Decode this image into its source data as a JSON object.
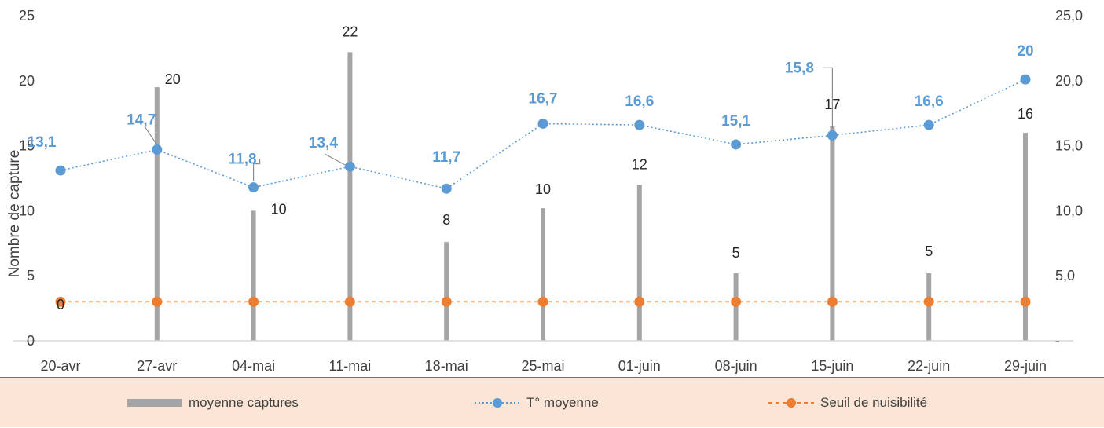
{
  "chart_data": {
    "type": "bar",
    "categories": [
      "20-avr",
      "27-avr",
      "04-mai",
      "11-mai",
      "18-mai",
      "25-mai",
      "01-juin",
      "08-juin",
      "15-juin",
      "22-juin",
      "29-juin"
    ],
    "series": [
      {
        "name": "moyenne captures",
        "type": "bar",
        "axis": "left",
        "color": "#a5a5a5",
        "values": [
          0,
          19.5,
          10,
          22.2,
          7.6,
          10.2,
          12,
          5.2,
          16.5,
          5.2,
          16
        ],
        "labels": [
          "0",
          "20",
          "10",
          "22",
          "8",
          "10",
          "12",
          "5",
          "17",
          "5",
          "16"
        ]
      },
      {
        "name": "T° moyenne",
        "type": "line",
        "axis": "right",
        "color": "#5b9bd5",
        "values": [
          13.1,
          14.7,
          11.8,
          13.4,
          11.7,
          16.7,
          16.6,
          15.1,
          15.8,
          16.6,
          20.1
        ],
        "labels": [
          "13,1",
          "14,7",
          "11,8",
          "13,4",
          "11,7",
          "16,7",
          "16,6",
          "15,1",
          "15,8",
          "16,6",
          "20"
        ]
      },
      {
        "name": "Seuil de nuisibilité",
        "type": "line",
        "axis": "left",
        "color": "#ed7d31",
        "values": [
          3,
          3,
          3,
          3,
          3,
          3,
          3,
          3,
          3,
          3,
          3
        ]
      }
    ],
    "ylabel": "Nombre de capture",
    "ylim": [
      0,
      25
    ],
    "yticks": [
      "0",
      "5",
      "10",
      "15",
      "20",
      "25"
    ],
    "ylim_right": [
      0,
      25
    ],
    "yticks_right": [
      "-",
      "5,0",
      "10,0",
      "15,0",
      "20,0",
      "25,0"
    ],
    "grid": false,
    "legend_position": "bottom"
  }
}
